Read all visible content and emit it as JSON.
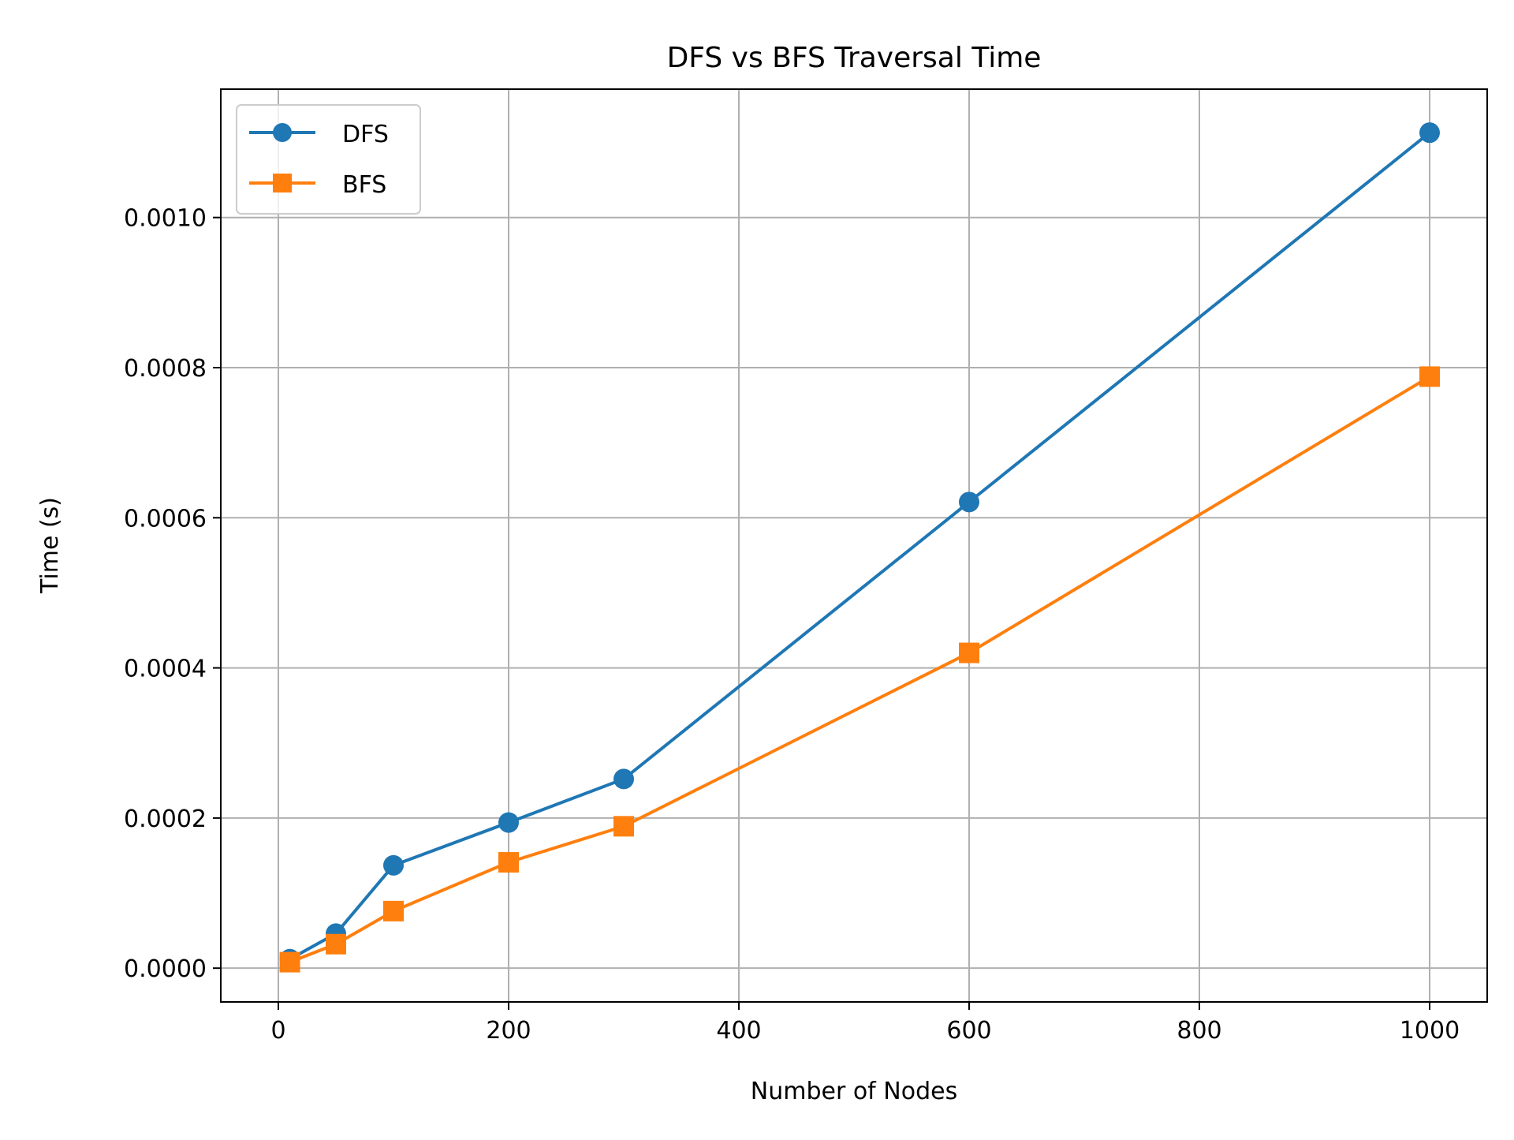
{
  "chart_data": {
    "type": "line",
    "title": "DFS vs BFS Traversal Time",
    "xlabel": "Number of Nodes",
    "ylabel": "Time (s)",
    "xlim": [
      -50,
      1050
    ],
    "ylim": [
      -4.5e-05,
      0.001171
    ],
    "xticks": [
      0,
      200,
      400,
      600,
      800,
      1000
    ],
    "xtick_labels": [
      "0",
      "200",
      "400",
      "600",
      "800",
      "1000"
    ],
    "yticks": [
      0.0,
      0.0002,
      0.0004,
      0.0006,
      0.0008,
      0.001
    ],
    "ytick_labels": [
      "0.0000",
      "0.0002",
      "0.0004",
      "0.0006",
      "0.0008",
      "0.0010"
    ],
    "grid": true,
    "legend_position": "upper-left",
    "x": [
      10,
      50,
      100,
      200,
      300,
      600,
      1000
    ],
    "series": [
      {
        "name": "DFS",
        "color": "#1f77b4",
        "marker": "circle",
        "values": [
          1.2e-05,
          4.6e-05,
          0.000137,
          0.000194,
          0.000252,
          0.000621,
          0.001113
        ]
      },
      {
        "name": "BFS",
        "color": "#ff7f0e",
        "marker": "square",
        "values": [
          8e-06,
          3.2e-05,
          7.6e-05,
          0.000141,
          0.000189,
          0.00042,
          0.000788
        ]
      }
    ]
  }
}
